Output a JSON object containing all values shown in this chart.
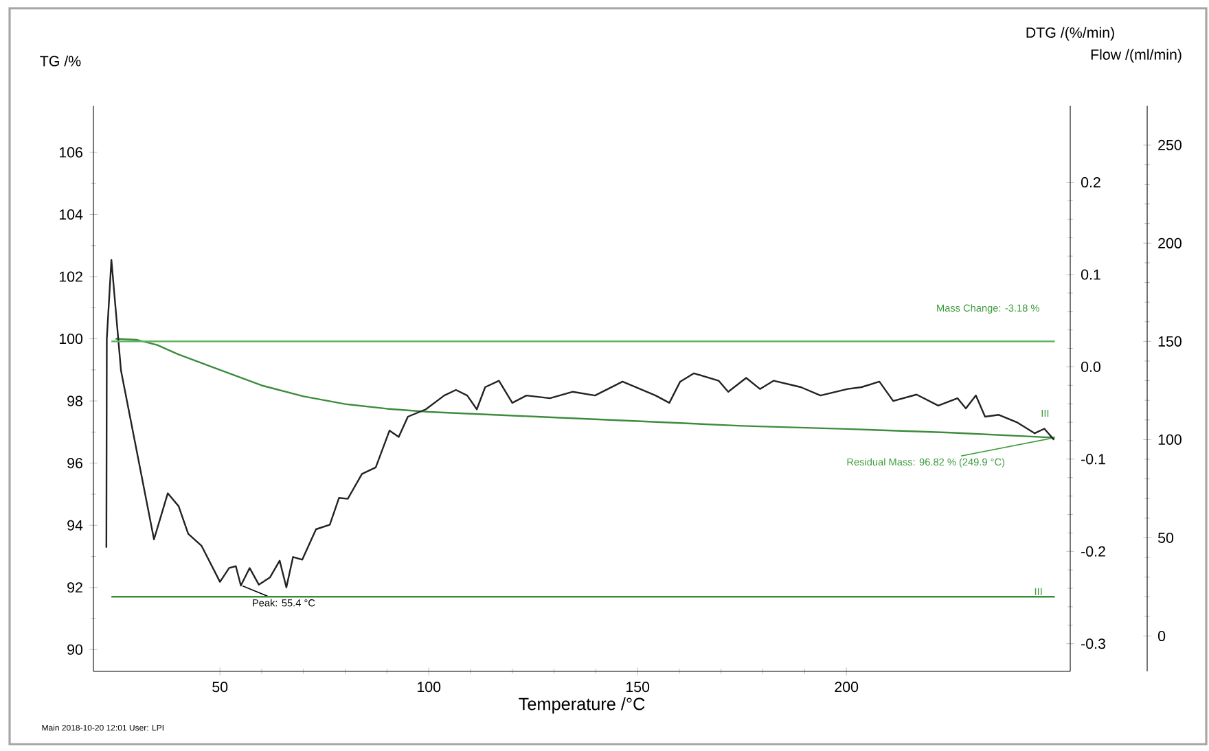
{
  "chart_data": {
    "type": "line",
    "xlabel": "Temperature /°C",
    "ylabel": "TG /%",
    "y2label": "DTG /(%/min)",
    "y3label": "Flow /(ml/min)",
    "xlim": [
      19.7,
      253.6
    ],
    "xticks": [
      50,
      100,
      150,
      200
    ],
    "ylim": [
      89.3,
      107.5
    ],
    "yticks": [
      90,
      92,
      94,
      96,
      98,
      100,
      102,
      104,
      106
    ],
    "y2lim": [
      -0.33,
      0.283
    ],
    "y2ticks": [
      -0.3,
      -0.2,
      -0.1,
      {
        "value": 0,
        "label": "0.0"
      },
      0.1,
      0.2
    ],
    "y3lim": [
      -18,
      270
    ],
    "y3ticks": [
      0,
      50,
      100,
      150,
      200,
      250
    ],
    "marker": "none",
    "line_style": "solid",
    "series": [
      {
        "color": "#3c8c3c",
        "axis": "y",
        "x": [
          25,
          30,
          35,
          40,
          50,
          60,
          70,
          80,
          90,
          100,
          125,
          150,
          175,
          200,
          225,
          249.9
        ],
        "values": [
          100,
          99.97,
          99.8,
          99.5,
          99.0,
          98.5,
          98.15,
          97.9,
          97.75,
          97.65,
          97.5,
          97.35,
          97.2,
          97.1,
          96.98,
          96.82
        ]
      },
      {
        "color": "#222222",
        "axis": "y2",
        "x": [
          22.8,
          22.9,
          24,
          26.3,
          34.2,
          37.5,
          40.1,
          42.4,
          45.6,
          50,
          52.2,
          53.8,
          55,
          57.1,
          59.3,
          62,
          64.3,
          65.9,
          67.5,
          69.7,
          73,
          76.3,
          78.5,
          80.6,
          84,
          87.3,
          90.6,
          92.8,
          95,
          99.3,
          103.7,
          106.5,
          109.2,
          111.5,
          113.5,
          116.8,
          120,
          123.4,
          129,
          134.5,
          139.8,
          146.4,
          154.3,
          157.6,
          160.2,
          163.5,
          169.4,
          171.7,
          176,
          179.3,
          182.6,
          189.1,
          193.8,
          200.3,
          203.6,
          207.9,
          211.2,
          216.8,
          222,
          226.6,
          228.6,
          231,
          233.2,
          236.5,
          240.8,
          245.1,
          247.4,
          249.7
        ],
        "values": [
          -0.196,
          0.03,
          0.116,
          -0.004,
          -0.187,
          -0.137,
          -0.151,
          -0.181,
          -0.194,
          -0.233,
          -0.218,
          -0.216,
          -0.237,
          -0.218,
          -0.236,
          -0.228,
          -0.21,
          -0.239,
          -0.206,
          -0.209,
          -0.176,
          -0.171,
          -0.142,
          -0.143,
          -0.116,
          -0.109,
          -0.069,
          -0.076,
          -0.054,
          -0.046,
          -0.031,
          -0.025,
          -0.031,
          -0.046,
          -0.022,
          -0.015,
          -0.039,
          -0.031,
          -0.034,
          -0.027,
          -0.031,
          -0.016,
          -0.031,
          -0.039,
          -0.016,
          -0.007,
          -0.015,
          -0.027,
          -0.012,
          -0.024,
          -0.015,
          -0.022,
          -0.031,
          -0.024,
          -0.022,
          -0.016,
          -0.037,
          -0.03,
          -0.042,
          -0.034,
          -0.045,
          -0.031,
          -0.054,
          -0.052,
          -0.06,
          -0.072,
          -0.067,
          -0.079
        ]
      },
      {
        "color": "#5fb45f",
        "axis": "y3",
        "x": [
          24,
          249.9
        ],
        "values": [
          150,
          150
        ]
      },
      {
        "color": "#3c8c3c",
        "axis": "y3",
        "x": [
          24,
          249.9
        ],
        "values": [
          20,
          20
        ]
      }
    ],
    "annotations": [
      {
        "text": "Peak: 55.4 °C",
        "x": 55.4,
        "y": 92.05
      },
      "Mass Change: -3.18 %",
      {
        "text": "Residual Mass: 96.82 % (249.9 °C)",
        "x": 249.9,
        "y": 96.82
      },
      "III",
      {
        "text": "III",
        "x": 247.5,
        "y": 91.8
      },
      "Main   2018-10-20 12:01   User: LPI"
    ]
  }
}
